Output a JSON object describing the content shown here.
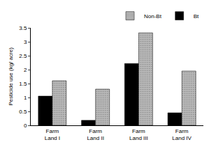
{
  "chart_data": {
    "type": "bar",
    "y_label": "Pesticide use (kg/ acre)",
    "categories": [
      "Farm Land I",
      "Farm Land II",
      "Farm Land III",
      "Farm Land IV"
    ],
    "series": [
      {
        "name": "Bt",
        "color": "#000000",
        "values": [
          1.05,
          0.18,
          2.22,
          0.45
        ]
      },
      {
        "name": "Non-Bt",
        "color": "#b8b8b8",
        "values": [
          1.6,
          1.3,
          3.32,
          1.95
        ]
      }
    ],
    "ylim": [
      0,
      3.5
    ],
    "yticks": [
      0,
      0.5,
      1,
      1.5,
      2,
      2.5,
      3,
      3.5
    ],
    "grid": false,
    "legend": "top"
  }
}
